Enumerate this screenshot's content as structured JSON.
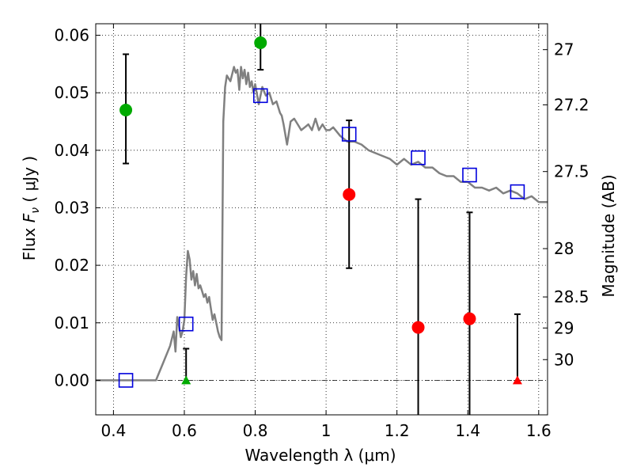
{
  "chart_data": {
    "type": "scatter",
    "xlabel": "Wavelength  λ (μm)",
    "ylabel_prefix": "Flux  ",
    "ylabel_symbol": "F",
    "ylabel_subscript": "ν",
    "ylabel_suffix": "  ( μJy )",
    "y2label": "Magnitude (AB)",
    "xlim": [
      0.35,
      1.625
    ],
    "ylim": [
      -0.006,
      0.062
    ],
    "xticks": [
      0.4,
      0.6,
      0.8,
      1.0,
      1.2,
      1.4,
      1.6
    ],
    "xtick_labels": [
      "0.4",
      "0.6",
      "0.8",
      "1",
      "1.2",
      "1.4",
      "1.6"
    ],
    "yticks": [
      0.0,
      0.01,
      0.02,
      0.03,
      0.04,
      0.05,
      0.06
    ],
    "ytick_labels": [
      "0.00",
      "0.01",
      "0.02",
      "0.03",
      "0.04",
      "0.05",
      "0.06"
    ],
    "y2ticks": [
      {
        "label": "27",
        "flux": 0.0575
      },
      {
        "label": "27.2",
        "flux": 0.0479
      },
      {
        "label": "27.5",
        "flux": 0.0363
      },
      {
        "label": "28",
        "flux": 0.0229
      },
      {
        "label": "28.5",
        "flux": 0.0145
      },
      {
        "label": "29",
        "flux": 0.0091
      },
      {
        "label": "30",
        "flux": 0.0036
      }
    ],
    "grid": true,
    "zero_line": true,
    "colors": {
      "model_line": "#808080",
      "model_points": "#0000dd",
      "detection_green": "#00aa00",
      "detection_red": "#ff0000",
      "errorbar": "#000000"
    },
    "model_spectrum": {
      "x": [
        0.35,
        0.52,
        0.54,
        0.56,
        0.57,
        0.575,
        0.58,
        0.585,
        0.59,
        0.595,
        0.6,
        0.605,
        0.61,
        0.615,
        0.62,
        0.625,
        0.63,
        0.635,
        0.64,
        0.645,
        0.65,
        0.655,
        0.66,
        0.665,
        0.67,
        0.675,
        0.68,
        0.685,
        0.69,
        0.695,
        0.7,
        0.705,
        0.71,
        0.715,
        0.72,
        0.73,
        0.74,
        0.745,
        0.75,
        0.755,
        0.76,
        0.765,
        0.77,
        0.775,
        0.78,
        0.785,
        0.79,
        0.795,
        0.8,
        0.81,
        0.82,
        0.83,
        0.84,
        0.85,
        0.86,
        0.87,
        0.875,
        0.88,
        0.89,
        0.9,
        0.91,
        0.92,
        0.93,
        0.94,
        0.95,
        0.96,
        0.97,
        0.98,
        0.99,
        1.0,
        1.01,
        1.02,
        1.04,
        1.06,
        1.08,
        1.1,
        1.12,
        1.14,
        1.16,
        1.18,
        1.2,
        1.22,
        1.24,
        1.26,
        1.28,
        1.3,
        1.32,
        1.34,
        1.36,
        1.38,
        1.4,
        1.42,
        1.44,
        1.46,
        1.48,
        1.5,
        1.52,
        1.54,
        1.56,
        1.58,
        1.6,
        1.625
      ],
      "y": [
        0.0,
        0.0,
        0.003,
        0.006,
        0.0085,
        0.005,
        0.011,
        0.0095,
        0.0075,
        0.0085,
        0.0105,
        0.018,
        0.0225,
        0.021,
        0.0175,
        0.019,
        0.0165,
        0.0185,
        0.016,
        0.0165,
        0.0155,
        0.0145,
        0.015,
        0.0135,
        0.0145,
        0.0125,
        0.0105,
        0.0115,
        0.01,
        0.0085,
        0.0075,
        0.007,
        0.045,
        0.051,
        0.053,
        0.052,
        0.0545,
        0.0535,
        0.054,
        0.0505,
        0.0545,
        0.0525,
        0.054,
        0.0515,
        0.0535,
        0.051,
        0.052,
        0.05,
        0.0515,
        0.048,
        0.051,
        0.0495,
        0.05,
        0.048,
        0.0485,
        0.0465,
        0.046,
        0.0445,
        0.041,
        0.045,
        0.0455,
        0.0445,
        0.0435,
        0.044,
        0.0445,
        0.0435,
        0.0455,
        0.0435,
        0.0445,
        0.0435,
        0.0435,
        0.044,
        0.0425,
        0.0415,
        0.0415,
        0.041,
        0.04,
        0.0395,
        0.039,
        0.0385,
        0.0375,
        0.0385,
        0.0375,
        0.038,
        0.037,
        0.037,
        0.036,
        0.0355,
        0.0355,
        0.0345,
        0.0345,
        0.0335,
        0.0335,
        0.033,
        0.0335,
        0.0325,
        0.033,
        0.0325,
        0.0315,
        0.032,
        0.031,
        0.031
      ]
    },
    "model_points": {
      "x": [
        0.435,
        0.605,
        0.815,
        1.065,
        1.26,
        1.405,
        1.54
      ],
      "y": [
        0.0,
        0.0098,
        0.0495,
        0.0428,
        0.0387,
        0.0357,
        0.0328
      ]
    },
    "observed": [
      {
        "x": 0.435,
        "y": 0.047,
        "yerr_low": 0.0377,
        "yerr_high": 0.0567,
        "marker": "circle",
        "color": "green"
      },
      {
        "x": 0.605,
        "y": 0.0,
        "yerr_low": 0.0,
        "yerr_high": 0.0055,
        "marker": "triangle",
        "color": "green"
      },
      {
        "x": 0.815,
        "y": 0.0587,
        "yerr_low": 0.054,
        "yerr_high": 0.063,
        "marker": "circle",
        "color": "green"
      },
      {
        "x": 1.065,
        "y": 0.0323,
        "yerr_low": 0.0195,
        "yerr_high": 0.0452,
        "marker": "circle",
        "color": "red"
      },
      {
        "x": 1.26,
        "y": 0.0092,
        "yerr_low": -0.007,
        "yerr_high": 0.0315,
        "marker": "circle",
        "color": "red"
      },
      {
        "x": 1.405,
        "y": 0.0107,
        "yerr_low": -0.007,
        "yerr_high": 0.0292,
        "marker": "circle",
        "color": "red"
      },
      {
        "x": 1.54,
        "y": 0.0,
        "yerr_low": 0.0,
        "yerr_high": 0.0115,
        "marker": "triangle",
        "color": "red"
      }
    ]
  }
}
